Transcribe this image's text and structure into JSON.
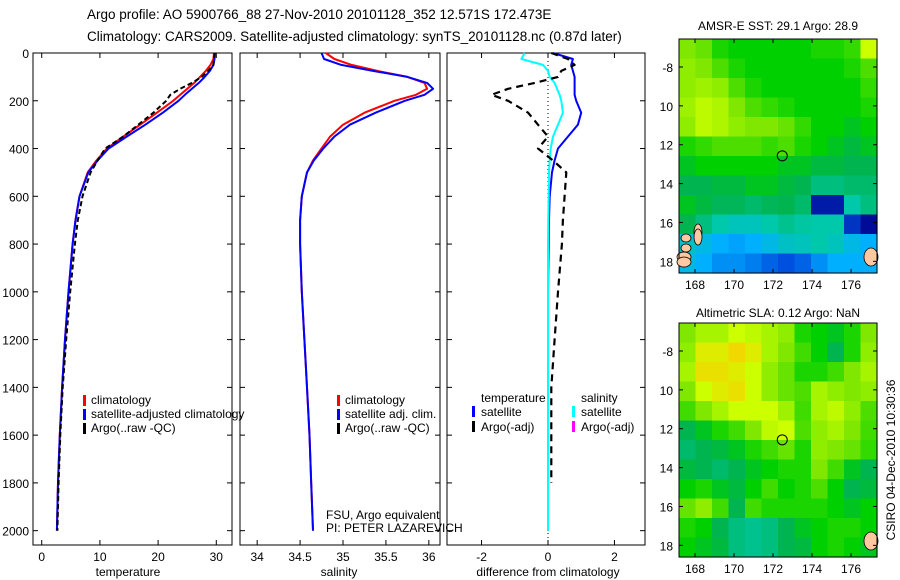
{
  "header": {
    "line1": "Argo profile: AO 5900766_88 27-Nov-2010 20101128_352 12.571S 172.473E",
    "line2": "Climatology: CARS2009. Satellite-adjusted climatology: synTS_20101128.nc (0.87d later)"
  },
  "footer": {
    "stamp": "CSIRO 04-Dec-2010 10:30:36",
    "note1": "FSU, Argo equivalent",
    "note2": "PI: PETER LAZAREVICH"
  },
  "colors": {
    "climatology": "#ff0000",
    "satellite": "#0000ff",
    "argo": "#000000",
    "sal_satellite": "#00ffff",
    "sal_argo": "#ff00ff"
  },
  "chart_data": [
    {
      "type": "line",
      "title": "",
      "xlabel": "temperature",
      "ylabel": "",
      "xlim": [
        -1.5,
        32.7
      ],
      "ylim": [
        2060,
        0
      ],
      "xticks": [
        0,
        10,
        20,
        30
      ],
      "yticks": [
        0,
        200,
        400,
        600,
        800,
        1000,
        1200,
        1400,
        1600,
        1800,
        2000
      ],
      "legend": [
        "climatology",
        "satellite-adjusted climatology",
        "Argo(..raw -QC)"
      ],
      "depth": [
        0,
        25,
        50,
        75,
        100,
        125,
        150,
        175,
        200,
        250,
        300,
        350,
        400,
        450,
        500,
        600,
        700,
        800,
        1000,
        1200,
        1400,
        1600,
        1800,
        2000
      ],
      "series": [
        {
          "name": "climatology",
          "values": [
            29.6,
            29.5,
            29.0,
            28.2,
            27.2,
            26.2,
            25.0,
            23.8,
            22.6,
            19.8,
            16.9,
            14.0,
            11.2,
            9.4,
            7.9,
            6.5,
            5.8,
            5.3,
            4.6,
            4.0,
            3.5,
            3.1,
            2.8,
            2.6
          ]
        },
        {
          "name": "satellite-adjusted climatology",
          "values": [
            29.8,
            29.7,
            29.5,
            28.9,
            28.0,
            27.0,
            25.8,
            24.6,
            23.5,
            20.8,
            17.8,
            14.6,
            11.5,
            9.6,
            8.0,
            6.5,
            5.8,
            5.3,
            4.6,
            4.0,
            3.5,
            3.1,
            2.8,
            2.6
          ]
        },
        {
          "name": "Argo(..raw -QC)",
          "values": [
            29.7,
            29.6,
            29.5,
            28.6,
            27.5,
            25.8,
            23.8,
            22.1,
            21.4,
            19.2,
            16.6,
            14.0,
            10.9,
            9.6,
            8.4,
            7.0,
            6.2,
            5.7,
            4.9,
            4.2,
            3.6,
            3.2,
            2.9,
            2.7
          ]
        }
      ]
    },
    {
      "type": "line",
      "xlabel": "salinity",
      "xlim": [
        33.8,
        36.13
      ],
      "ylim": [
        2060,
        0
      ],
      "xticks": [
        34,
        34.5,
        35,
        35.5,
        36
      ],
      "legend": [
        "climatology",
        "satellite adj. clim.",
        "Argo(..raw -QC)"
      ],
      "depth": [
        0,
        25,
        50,
        75,
        100,
        125,
        150,
        175,
        200,
        250,
        300,
        350,
        400,
        450,
        500,
        600,
        700,
        800,
        1000,
        1200,
        1400,
        1600,
        1800,
        2000
      ],
      "series": [
        {
          "name": "climatology",
          "values": [
            34.8,
            34.9,
            35.1,
            35.4,
            35.75,
            35.95,
            35.98,
            35.85,
            35.6,
            35.25,
            35.0,
            34.85,
            34.75,
            34.65,
            34.58,
            34.52,
            34.5,
            34.5,
            34.52,
            34.55,
            34.58,
            34.61,
            34.63,
            34.65
          ]
        },
        {
          "name": "satellite adj. clim.",
          "values": [
            34.75,
            34.78,
            34.98,
            35.35,
            35.75,
            35.98,
            36.05,
            35.95,
            35.72,
            35.38,
            35.08,
            34.9,
            34.77,
            34.66,
            34.58,
            34.52,
            34.5,
            34.5,
            34.52,
            34.55,
            34.58,
            34.61,
            34.63,
            34.65
          ]
        },
        {
          "name": "Argo(..raw -QC)",
          "values": []
        }
      ]
    },
    {
      "type": "line",
      "xlabel": "difference from climatology",
      "xlim": [
        -3.04,
        2.92
      ],
      "ylim": [
        2060,
        0
      ],
      "xticks": [
        -2,
        0,
        2
      ],
      "legend_temperature": {
        "heading": "temperature",
        "items": [
          "satellite",
          "Argo(-adj)"
        ]
      },
      "legend_salinity": {
        "heading": "salinity",
        "items": [
          "satellite",
          "Argo(-adj)"
        ]
      },
      "depth": [
        0,
        25,
        50,
        75,
        100,
        125,
        150,
        175,
        200,
        250,
        300,
        350,
        400,
        450,
        500,
        600,
        700,
        800,
        1000,
        1200,
        1400,
        1600,
        1800,
        2000
      ],
      "series": [
        {
          "name": "temperature satellite",
          "values": [
            0.15,
            0.75,
            0.7,
            0.75,
            0.8,
            0.8,
            0.8,
            0.8,
            0.85,
            1.0,
            0.9,
            0.6,
            0.3,
            0.2,
            0.12,
            0.05,
            0.03,
            0.02,
            0.0,
            0.0,
            0.0,
            0.0,
            0.0,
            0.0
          ]
        },
        {
          "name": "salinity satellite",
          "values": [
            -0.7,
            -0.8,
            -0.15,
            0.0,
            0.05,
            0.2,
            0.27,
            0.35,
            0.4,
            0.45,
            0.3,
            0.15,
            0.08,
            0.05,
            0.03,
            0.02,
            0.01,
            0,
            0,
            0,
            0,
            0,
            0,
            0
          ]
        },
        {
          "name": "temperature Argo(-adj)",
          "values": [
            0.1,
            0.6,
            0.8,
            0.4,
            0.3,
            -0.4,
            -1.2,
            -1.7,
            -1.2,
            -0.6,
            -0.3,
            0.0,
            -0.3,
            0.15,
            0.55,
            0.5,
            0.45,
            0.42,
            0.3,
            0.2,
            0.1,
            0.1,
            0.1,
            null
          ]
        },
        {
          "name": "salinity Argo(-adj)",
          "values": []
        }
      ]
    },
    {
      "type": "heatmap",
      "title": "AMSR-E SST: 29.1 Argo: 28.9",
      "xlim": [
        167.18,
        177.33
      ],
      "ylim": [
        -6.56,
        -18.6
      ],
      "xticks": [
        168,
        170,
        172,
        174,
        176
      ],
      "yticks": [
        -8,
        -10,
        -12,
        -14,
        -16,
        -18
      ],
      "ytick_labels": [
        "-8",
        "10",
        "12",
        "14",
        "16",
        "18"
      ],
      "marker": {
        "lon": 172.473,
        "lat": -12.571
      },
      "grid_normalized": [
        [
          0.7,
          0.68,
          0.62,
          0.6,
          0.6,
          0.6,
          0.6,
          0.6,
          0.62,
          0.62,
          0.64,
          0.8
        ],
        [
          0.72,
          0.7,
          0.66,
          0.62,
          0.6,
          0.6,
          0.6,
          0.6,
          0.6,
          0.6,
          0.62,
          0.66
        ],
        [
          0.72,
          0.74,
          0.72,
          0.66,
          0.62,
          0.6,
          0.6,
          0.6,
          0.6,
          0.6,
          0.6,
          0.64
        ],
        [
          0.74,
          0.78,
          0.76,
          0.7,
          0.66,
          0.64,
          0.62,
          0.6,
          0.6,
          0.6,
          0.6,
          0.62
        ],
        [
          0.72,
          0.78,
          0.76,
          0.72,
          0.7,
          0.7,
          0.68,
          0.64,
          0.6,
          0.6,
          0.58,
          0.6
        ],
        [
          0.62,
          0.64,
          0.66,
          0.66,
          0.66,
          0.64,
          0.66,
          0.62,
          0.6,
          0.58,
          0.56,
          0.58
        ],
        [
          0.58,
          0.6,
          0.6,
          0.6,
          0.6,
          0.6,
          0.58,
          0.58,
          0.56,
          0.56,
          0.55,
          0.55
        ],
        [
          0.55,
          0.55,
          0.56,
          0.56,
          0.58,
          0.58,
          0.56,
          0.55,
          0.5,
          0.5,
          0.52,
          0.52
        ],
        [
          0.58,
          0.56,
          0.54,
          0.54,
          0.52,
          0.54,
          0.55,
          0.52,
          0.05,
          0.05,
          0.45,
          0.5
        ],
        [
          0.55,
          0.5,
          0.45,
          0.42,
          0.42,
          0.45,
          0.48,
          0.46,
          0.45,
          0.45,
          0.1,
          0.02
        ],
        [
          0.4,
          0.35,
          0.3,
          0.28,
          0.3,
          0.35,
          0.4,
          0.42,
          0.45,
          0.42,
          0.35,
          0.3
        ],
        [
          0.35,
          0.3,
          0.25,
          0.25,
          0.22,
          0.18,
          0.15,
          0.18,
          0.25,
          0.3,
          0.3,
          0.3
        ]
      ]
    },
    {
      "type": "heatmap",
      "title": "Altimetric SLA: 0.12 Argo: NaN",
      "xlim": [
        167.18,
        177.33
      ],
      "ylim": [
        -6.56,
        -18.6
      ],
      "xticks": [
        168,
        170,
        172,
        174,
        176
      ],
      "yticks": [
        -8,
        -10,
        -12,
        -14,
        -16,
        -18
      ],
      "ytick_labels": [
        "-8",
        "10",
        "12",
        "14",
        "16",
        "18"
      ],
      "marker": {
        "lon": 172.473,
        "lat": -12.571
      },
      "grid_normalized": [
        [
          0.7,
          0.75,
          0.75,
          0.8,
          0.78,
          0.75,
          0.72,
          0.62,
          0.6,
          0.58,
          0.62,
          0.7
        ],
        [
          0.72,
          0.85,
          0.85,
          0.9,
          0.85,
          0.75,
          0.7,
          0.65,
          0.6,
          0.55,
          0.62,
          0.72
        ],
        [
          0.75,
          0.88,
          0.88,
          0.85,
          0.8,
          0.72,
          0.68,
          0.62,
          0.62,
          0.65,
          0.7,
          0.75
        ],
        [
          0.7,
          0.8,
          0.85,
          0.88,
          0.8,
          0.72,
          0.68,
          0.66,
          0.75,
          0.72,
          0.7,
          0.72
        ],
        [
          0.65,
          0.7,
          0.75,
          0.8,
          0.8,
          0.8,
          0.74,
          0.65,
          0.75,
          0.78,
          0.72,
          0.66
        ],
        [
          0.55,
          0.58,
          0.62,
          0.65,
          0.7,
          0.78,
          0.8,
          0.66,
          0.72,
          0.75,
          0.7,
          0.65
        ],
        [
          0.52,
          0.55,
          0.56,
          0.58,
          0.62,
          0.65,
          0.68,
          0.62,
          0.72,
          0.7,
          0.68,
          0.64
        ],
        [
          0.56,
          0.55,
          0.52,
          0.55,
          0.58,
          0.6,
          0.62,
          0.62,
          0.7,
          0.65,
          0.58,
          0.55
        ],
        [
          0.6,
          0.62,
          0.58,
          0.56,
          0.6,
          0.65,
          0.6,
          0.62,
          0.66,
          0.6,
          0.55,
          0.56
        ],
        [
          0.68,
          0.72,
          0.65,
          0.55,
          0.65,
          0.62,
          0.62,
          0.62,
          0.62,
          0.6,
          0.58,
          0.6
        ],
        [
          0.62,
          0.6,
          0.55,
          0.5,
          0.48,
          0.5,
          0.55,
          0.58,
          0.6,
          0.62,
          0.62,
          0.6
        ],
        [
          0.6,
          0.58,
          0.56,
          0.5,
          0.48,
          0.5,
          0.55,
          0.56,
          0.6,
          0.62,
          0.6,
          0.58
        ]
      ]
    }
  ]
}
